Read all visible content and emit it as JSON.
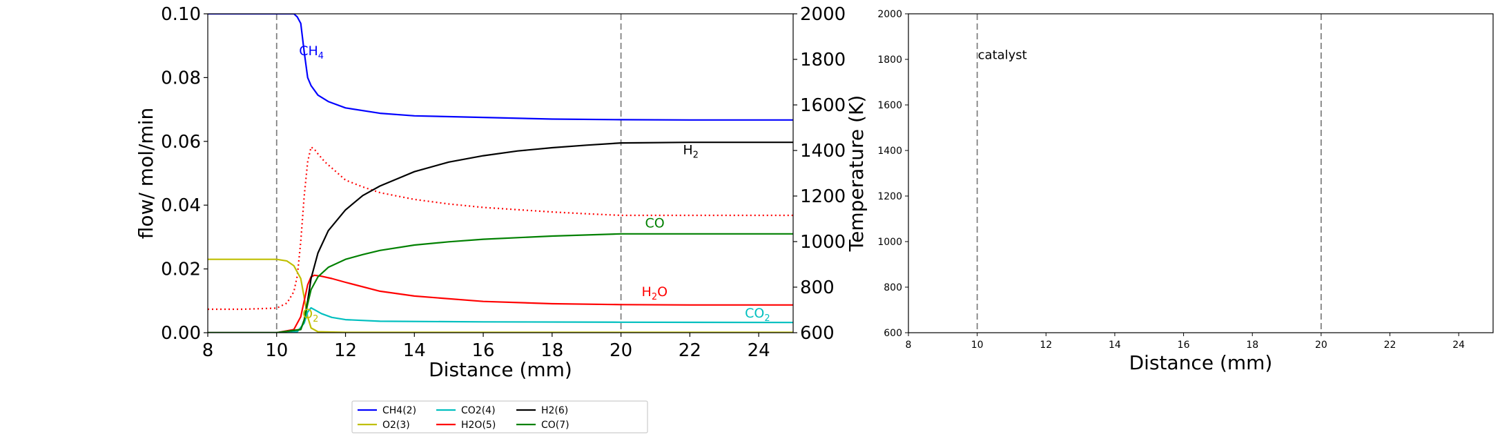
{
  "chart_data": [
    {
      "type": "line",
      "x_axis": {
        "label": "Distance (mm)",
        "range": [
          8,
          25
        ],
        "ticks": [
          8,
          10,
          12,
          14,
          16,
          18,
          20,
          22,
          24
        ],
        "tick_labels": [
          "8",
          "10",
          "12",
          "14",
          "16",
          "18",
          "20",
          "22",
          "24"
        ]
      },
      "y_axis": {
        "label": "flow/ mol/min",
        "range": [
          0,
          0.1
        ],
        "ticks": [
          0,
          0.02,
          0.04,
          0.06,
          0.08,
          0.1
        ],
        "tick_labels": [
          "0.00",
          "0.02",
          "0.04",
          "0.06",
          "0.08",
          "0.10"
        ]
      },
      "y2_axis": {
        "label": "Temperature (K)",
        "range": [
          600,
          2000
        ],
        "ticks": [
          600,
          800,
          1000,
          1200,
          1400,
          1600,
          1800,
          2000
        ],
        "tick_labels": [
          "600",
          "800",
          "1000",
          "1200",
          "1400",
          "1600",
          "1800",
          "2000"
        ]
      },
      "grid": false,
      "vlines": [
        10,
        20
      ],
      "series": [
        {
          "name": "CH4(2)",
          "color": "#0000ff",
          "style": "solid",
          "x": [
            8,
            10,
            10.3,
            10.5,
            10.6,
            10.7,
            10.8,
            10.9,
            11,
            11.2,
            11.5,
            12,
            13,
            14,
            16,
            18,
            20,
            22,
            25
          ],
          "y": [
            0.1,
            0.1,
            0.1,
            0.1,
            0.099,
            0.097,
            0.088,
            0.08,
            0.0775,
            0.0745,
            0.0725,
            0.0705,
            0.0688,
            0.068,
            0.0675,
            0.067,
            0.0668,
            0.0667,
            0.0667
          ]
        },
        {
          "name": "O2(3)",
          "color": "#bfbf00",
          "style": "solid",
          "x": [
            8,
            10,
            10.3,
            10.5,
            10.7,
            10.8,
            10.9,
            11,
            11.2,
            12,
            25
          ],
          "y": [
            0.023,
            0.023,
            0.0225,
            0.021,
            0.017,
            0.011,
            0.005,
            0.0015,
            0.0003,
            0.0001,
            0.0001
          ]
        },
        {
          "name": "CO2(4)",
          "color": "#00bfbf",
          "style": "solid",
          "x": [
            8,
            10,
            10.6,
            10.8,
            10.9,
            11,
            11.1,
            11.3,
            11.6,
            12,
            13,
            16,
            20,
            25
          ],
          "y": [
            0,
            0,
            0.0003,
            0.003,
            0.0065,
            0.0078,
            0.0072,
            0.006,
            0.0048,
            0.0041,
            0.0036,
            0.0034,
            0.0033,
            0.0032
          ]
        },
        {
          "name": "H2O(5)",
          "color": "#ff0000",
          "style": "solid",
          "x": [
            8,
            10,
            10.5,
            10.7,
            10.8,
            10.9,
            11,
            11.1,
            11.3,
            11.6,
            12,
            13,
            14,
            16,
            18,
            20,
            22,
            25
          ],
          "y": [
            0,
            0,
            0.001,
            0.005,
            0.01,
            0.015,
            0.0175,
            0.018,
            0.0177,
            0.017,
            0.0158,
            0.013,
            0.0115,
            0.0098,
            0.0091,
            0.0088,
            0.0087,
            0.0087
          ]
        },
        {
          "name": "H2(6)",
          "color": "#000000",
          "style": "solid",
          "x": [
            8,
            10,
            10.7,
            10.8,
            10.9,
            11,
            11.2,
            11.5,
            12,
            12.5,
            13,
            14,
            15,
            16,
            17,
            18,
            19,
            20,
            22,
            25
          ],
          "y": [
            0,
            0,
            0.001,
            0.004,
            0.01,
            0.017,
            0.025,
            0.032,
            0.0385,
            0.043,
            0.046,
            0.0505,
            0.0535,
            0.0555,
            0.057,
            0.058,
            0.0588,
            0.0595,
            0.0597,
            0.0597
          ]
        },
        {
          "name": "CO(7)",
          "color": "#008000",
          "style": "solid",
          "x": [
            8,
            10,
            10.7,
            10.8,
            10.9,
            11,
            11.2,
            11.5,
            12,
            12.5,
            13,
            14,
            15,
            16,
            18,
            20,
            22,
            25
          ],
          "y": [
            0,
            0,
            0.001,
            0.004,
            0.009,
            0.0135,
            0.0175,
            0.0205,
            0.023,
            0.0245,
            0.0258,
            0.0275,
            0.0285,
            0.0293,
            0.0303,
            0.031,
            0.031,
            0.031
          ]
        }
      ],
      "temperature_series": {
        "color": "#ff0000",
        "style": "dotted",
        "axis": "y2",
        "x": [
          8,
          9,
          10,
          10.3,
          10.5,
          10.6,
          10.7,
          10.8,
          10.9,
          11,
          11.1,
          11.2,
          11.4,
          11.7,
          12,
          12.5,
          13,
          14,
          15,
          16,
          17,
          18,
          19,
          20,
          22,
          25
        ],
        "y": [
          703,
          703,
          708,
          730,
          780,
          850,
          1000,
          1200,
          1350,
          1415,
          1405,
          1385,
          1350,
          1310,
          1270,
          1240,
          1215,
          1185,
          1165,
          1150,
          1140,
          1130,
          1122,
          1115,
          1115,
          1115
        ]
      },
      "annotations": [
        {
          "text": "CH",
          "sub": "4",
          "color": "#0000ff",
          "x": 10.65,
          "y": 0.087
        },
        {
          "text": "H",
          "sub": "2",
          "color": "#000000",
          "x": 21.8,
          "y": 0.056
        },
        {
          "text": "CO",
          "color": "#008000",
          "x": 20.7,
          "y": 0.033
        },
        {
          "text": "H",
          "sub": "2",
          "tail": "O",
          "color": "#ff0000",
          "x": 20.6,
          "y": 0.0115
        },
        {
          "text": "CO",
          "sub": "2",
          "color": "#00bfbf",
          "x": 23.6,
          "y": 0.0048
        },
        {
          "text": "O",
          "sub": "2",
          "color": "#bfbf00",
          "x": 10.75,
          "y": 0.0045
        }
      ],
      "legend": {
        "placement": "below",
        "columns": 4,
        "entries": [
          {
            "label": "CH4(2)",
            "color": "#0000ff"
          },
          {
            "label": "O2(3)",
            "color": "#bfbf00"
          },
          {
            "label": "CO2(4)",
            "color": "#00bfbf"
          },
          {
            "label": "H2O(5)",
            "color": "#ff0000"
          },
          {
            "label": "H2(6)",
            "color": "#000000"
          },
          {
            "label": "CO(7)",
            "color": "#008000"
          }
        ]
      }
    },
    {
      "type": "line",
      "x_axis": {
        "label": "Distance (mm)",
        "range": [
          8,
          25
        ],
        "ticks": [
          8,
          10,
          12,
          14,
          16,
          18,
          20,
          22,
          24
        ],
        "tick_labels": [
          "8",
          "10",
          "12",
          "14",
          "16",
          "18",
          "20",
          "22",
          "24"
        ]
      },
      "y_axis": {
        "label": "",
        "range": [
          600,
          2000
        ],
        "ticks": [
          600,
          800,
          1000,
          1200,
          1400,
          1600,
          1800,
          2000
        ],
        "tick_labels": [
          "600",
          "800",
          "1000",
          "1200",
          "1400",
          "1600",
          "1800",
          "2000"
        ]
      },
      "grid": false,
      "vlines": [
        10,
        20
      ],
      "series": [],
      "annotations": [
        {
          "text": "catalyst",
          "color": "#000000",
          "x": 10.0,
          "y": 1820
        }
      ]
    }
  ]
}
